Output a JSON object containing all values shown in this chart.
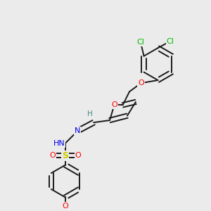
{
  "background_color": "#ebebeb",
  "bond_color": "#1a1a1a",
  "atom_colors": {
    "O": "#ff0000",
    "N": "#0000ee",
    "S": "#cccc00",
    "Cl": "#00bb00",
    "H": "#448888",
    "C": "#1a1a1a"
  },
  "figsize": [
    3.0,
    3.0
  ],
  "dpi": 100
}
